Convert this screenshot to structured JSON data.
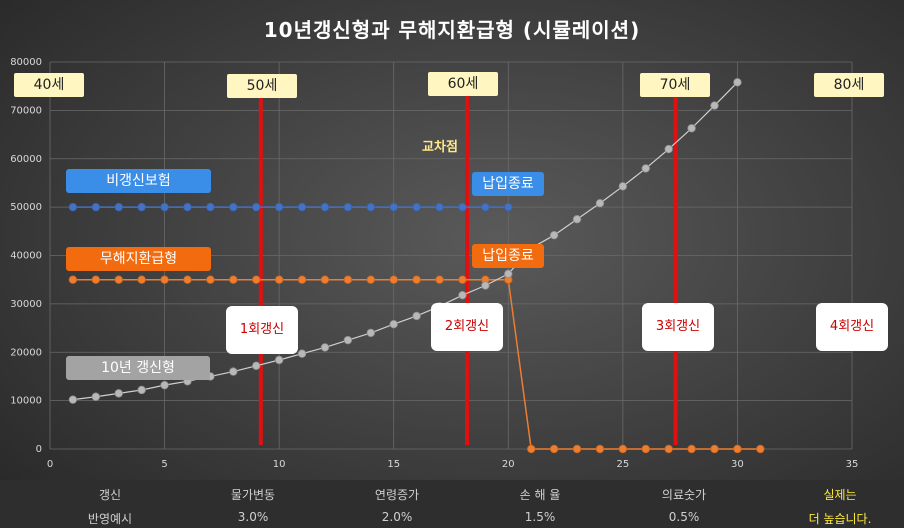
{
  "title": "10년갱신형과  무해지환급형 (시뮬레이션)",
  "chart_data": {
    "type": "line",
    "xlim": [
      0,
      35
    ],
    "ylim": [
      0,
      80000
    ],
    "x_ticks": [
      0,
      5,
      10,
      15,
      20,
      25,
      30,
      35
    ],
    "y_ticks": [
      0,
      10000,
      20000,
      30000,
      40000,
      50000,
      60000,
      70000,
      80000
    ],
    "grid": true,
    "series": [
      {
        "name": "비갱신보험",
        "color": "#4472c4",
        "x": [
          1,
          2,
          3,
          4,
          5,
          6,
          7,
          8,
          9,
          10,
          11,
          12,
          13,
          14,
          15,
          16,
          17,
          18,
          19,
          20
        ],
        "values": [
          50000,
          50000,
          50000,
          50000,
          50000,
          50000,
          50000,
          50000,
          50000,
          50000,
          50000,
          50000,
          50000,
          50000,
          50000,
          50000,
          50000,
          50000,
          50000,
          50000
        ]
      },
      {
        "name": "무해지환급형",
        "color": "#ed7d31",
        "x": [
          1,
          2,
          3,
          4,
          5,
          6,
          7,
          8,
          9,
          10,
          11,
          12,
          13,
          14,
          15,
          16,
          17,
          18,
          19,
          20,
          21,
          22,
          23,
          24,
          25,
          26,
          27,
          28,
          29,
          30,
          31
        ],
        "values": [
          35000,
          35000,
          35000,
          35000,
          35000,
          35000,
          35000,
          35000,
          35000,
          35000,
          35000,
          35000,
          35000,
          35000,
          35000,
          35000,
          35000,
          35000,
          35000,
          35000,
          0,
          0,
          0,
          0,
          0,
          0,
          0,
          0,
          0,
          0,
          0
        ]
      },
      {
        "name": "10년 갱신형",
        "color": "#a6a6a6",
        "x": [
          1,
          2,
          3,
          4,
          5,
          6,
          7,
          8,
          9,
          10,
          11,
          12,
          13,
          14,
          15,
          16,
          17,
          18,
          19,
          20,
          21,
          22,
          23,
          24,
          25,
          26,
          27,
          28,
          29,
          30,
          31
        ],
        "values": [
          10200,
          10800,
          11500,
          12200,
          13200,
          14000,
          15000,
          16000,
          17200,
          18400,
          19700,
          21000,
          22500,
          24000,
          25800,
          27500,
          29500,
          31800,
          33800,
          36200,
          41500,
          44200,
          47500,
          50800,
          54300,
          58000,
          62000,
          66300,
          71000,
          75800,
          0
        ]
      }
    ],
    "red_lines_x": [
      9.2,
      18.2,
      27.3
    ],
    "age_labels": [
      {
        "text": "40세",
        "x": 0.0
      },
      {
        "text": "50세",
        "x": 9.2
      },
      {
        "text": "60세",
        "x": 18.2
      },
      {
        "text": "70세",
        "x": 27.3
      },
      {
        "text": "80세",
        "x": 35.0
      }
    ],
    "renewal_labels": [
      {
        "text": "1회갱신",
        "x": 9.2
      },
      {
        "text": "2회갱신",
        "x": 18.2
      },
      {
        "text": "3회갱신",
        "x": 27.3
      },
      {
        "text": "4회갱신",
        "x": 35.0
      }
    ],
    "series_labels": {
      "nonrenew": "비갱신보험",
      "nonrefund": "무해지환급형",
      "renew10": "10년 갱신형"
    },
    "end_labels": {
      "blue": "납입종료",
      "orange": "납입종료"
    },
    "crossover_label": "교차점"
  },
  "footer": {
    "row1": [
      "갱신",
      "물가변동",
      "연령증가",
      "손 해 율",
      "의료숫가",
      "실제는"
    ],
    "row2": [
      "반영예시",
      "3.0%",
      "2.0%",
      "1.5%",
      "0.5%",
      "더 높습니다."
    ]
  }
}
